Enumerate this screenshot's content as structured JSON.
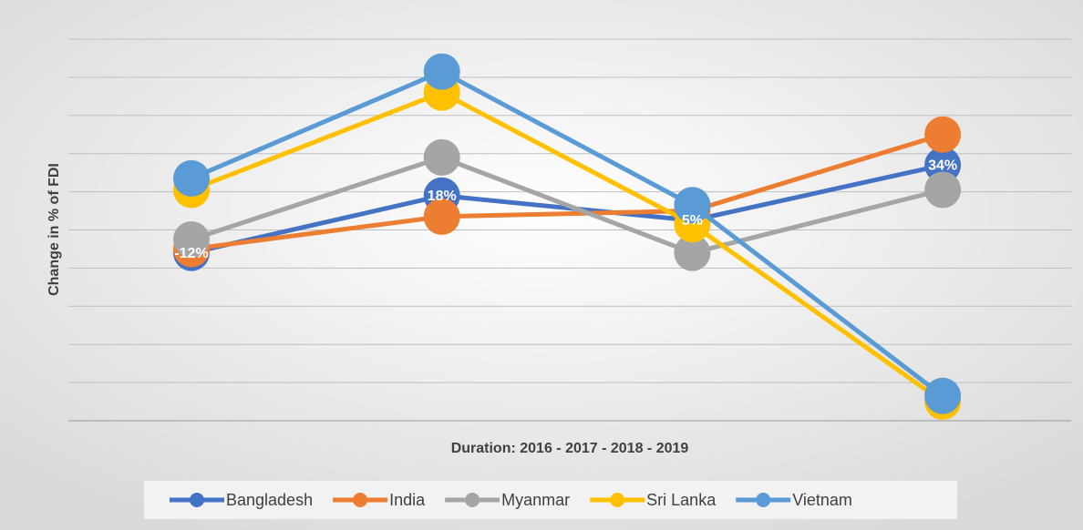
{
  "chart_data": {
    "type": "line",
    "y_label": "Change in % of FDI",
    "x_label": "Duration: 2016 - 2017 - 2018 - 2019",
    "categories": [
      null,
      null,
      null,
      null
    ],
    "ylim": [
      -100,
      100
    ],
    "yticks": [
      -100,
      -80,
      -60,
      -40,
      -20,
      0,
      20,
      40,
      60,
      80,
      100
    ],
    "grid": true,
    "legend": "bottom",
    "series": [
      {
        "name": "Bangladesh",
        "color": "#4472c4",
        "values": [
          -12,
          18,
          5,
          34
        ],
        "value_labels": [
          "-12%",
          "18%",
          "5%",
          "34%"
        ]
      },
      {
        "name": "India",
        "color": "#ed7d31",
        "values": [
          -10,
          7,
          10,
          50
        ]
      },
      {
        "name": "Myanmar",
        "color": "#a5a5a5",
        "values": [
          -5,
          38,
          -12,
          21
        ]
      },
      {
        "name": "Sri Lanka",
        "color": "#ffc000",
        "values": [
          21,
          72,
          3,
          -90
        ]
      },
      {
        "name": "Vietnam",
        "color": "#5b9bd5",
        "values": [
          27,
          83,
          13,
          -87
        ]
      }
    ]
  }
}
